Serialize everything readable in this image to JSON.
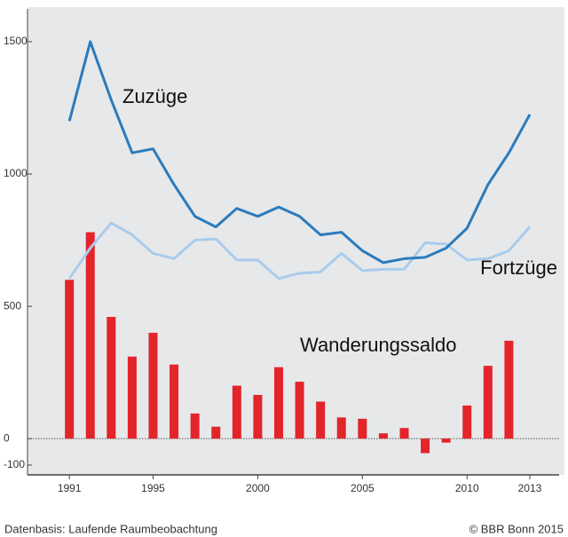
{
  "chart_data": {
    "type": "line",
    "x": [
      1991,
      1992,
      1993,
      1994,
      1995,
      1996,
      1997,
      1998,
      1999,
      2000,
      2001,
      2002,
      2003,
      2004,
      2005,
      2006,
      2007,
      2008,
      2009,
      2010,
      2011,
      2012,
      2013
    ],
    "series": [
      {
        "name": "Zuzüge",
        "color": "#2b7bbd",
        "type": "line",
        "values": [
          1200,
          1500,
          1280,
          1080,
          1095,
          960,
          840,
          800,
          870,
          840,
          875,
          840,
          770,
          780,
          710,
          665,
          680,
          685,
          720,
          795,
          960,
          1080,
          1225
        ]
      },
      {
        "name": "Fortzüge",
        "color": "#a9cceb",
        "type": "line",
        "values": [
          605,
          720,
          815,
          770,
          700,
          680,
          750,
          755,
          675,
          675,
          605,
          625,
          630,
          700,
          635,
          640,
          640,
          740,
          735,
          675,
          680,
          710,
          800
        ]
      },
      {
        "name": "Wanderungssaldo",
        "color": "#e3242b",
        "type": "bar",
        "values": [
          600,
          780,
          460,
          310,
          400,
          280,
          95,
          45,
          200,
          165,
          270,
          215,
          140,
          80,
          75,
          20,
          40,
          -55,
          -15,
          125,
          275,
          370,
          null
        ]
      }
    ],
    "xlim": [
      1989,
      2014.4
    ],
    "xticks": [
      1991,
      1995,
      2000,
      2005,
      2010,
      2013
    ],
    "ylim": [
      -137,
      1624
    ],
    "yticks": [
      -100,
      0,
      500,
      1000,
      1500
    ],
    "source": "Datenbasis: Laufende Raumbeobachtung",
    "copyright": "© BBR Bonn 2015"
  }
}
